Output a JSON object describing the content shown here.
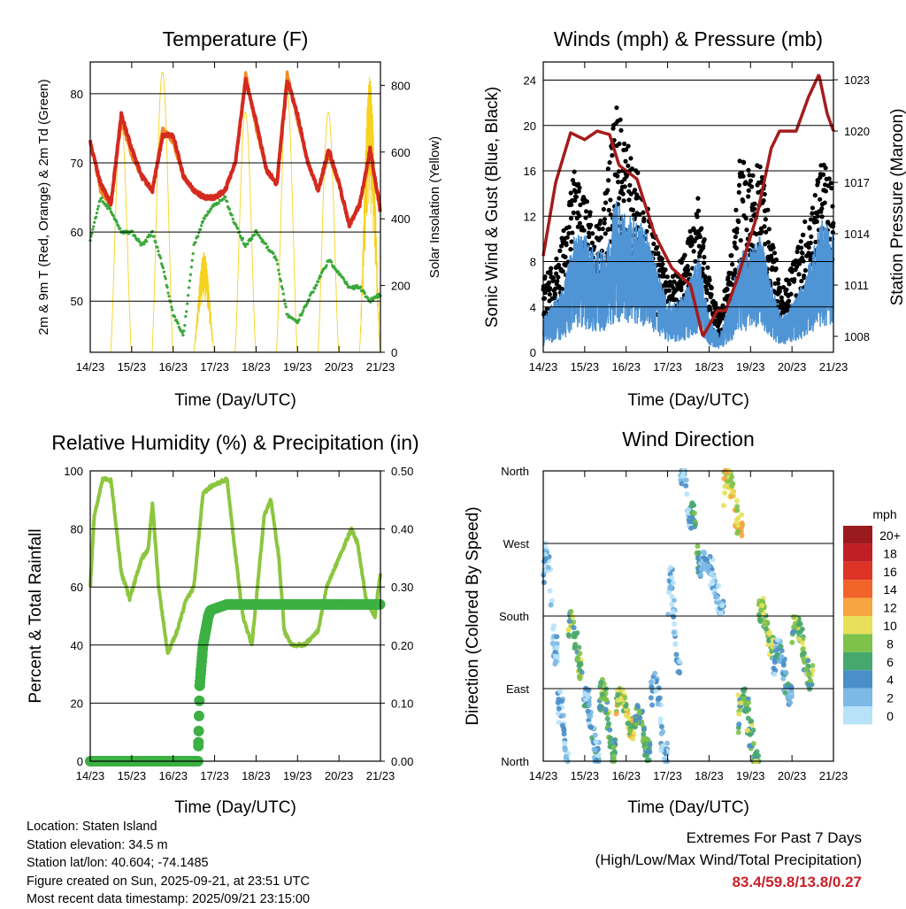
{
  "info": {
    "location": "Location: Staten Island",
    "elevation": "Station elevation: 34.5 m",
    "latlon": "Station lat/lon: 40.604; -74.1485",
    "created": "Figure created on Sun, 2025-09-21, at 23:51 UTC",
    "recent": "Most recent data timestamp: 2025/09/21 23:15:00"
  },
  "extremes": {
    "title": "Extremes For Past 7 Days",
    "subtitle": "(High/Low/Max Wind/Total Precipitation)",
    "values": "83.4/59.8/13.8/0.27"
  },
  "chart_data": [
    {
      "type": "line",
      "title": "Temperature (F)",
      "xlabel": "Time (Day/UTC)",
      "ylabel": "2m & 9m T (Red, Orange) & 2m Td (Green)",
      "y2label": "Solar Insolation (Yellow)",
      "xticks": [
        "14/23",
        "15/23",
        "16/23",
        "17/23",
        "18/23",
        "19/23",
        "20/23",
        "21/23"
      ],
      "ylim": [
        42.6,
        84.6
      ],
      "yticks": [
        50,
        60,
        70,
        80
      ],
      "y2lim": [
        0,
        870
      ],
      "y2ticks": [
        0,
        200,
        400,
        600,
        800
      ],
      "x_days_step": 0.25,
      "series": [
        {
          "name": "2m T",
          "color": "#d42a20",
          "values": [
            73,
            67,
            64,
            77,
            72,
            68,
            66,
            74,
            74,
            68,
            66,
            65,
            65,
            66,
            70,
            82,
            76,
            69,
            67,
            82,
            77,
            70,
            66,
            72,
            67,
            61,
            64,
            72,
            63
          ]
        },
        {
          "name": "9m T",
          "color": "#f28a24",
          "values": [
            73,
            66,
            64,
            76,
            71,
            68,
            66,
            75,
            73,
            68,
            66,
            65,
            65,
            66,
            70,
            83,
            75,
            69,
            67,
            83,
            76,
            70,
            66,
            71,
            67,
            61,
            64,
            71,
            63
          ]
        },
        {
          "name": "2m Td",
          "color": "#3aa83a",
          "values": [
            59,
            65,
            63,
            60,
            60,
            58,
            60,
            55,
            48,
            45,
            58,
            62,
            64,
            65,
            61,
            58,
            60,
            58,
            56,
            48,
            47,
            50,
            53,
            56,
            54,
            52,
            52,
            50,
            51
          ]
        }
      ],
      "solar_daily_peak": {
        "name": "Solar Insolation",
        "color": "#f7d21e",
        "values": [
          700,
          840,
          300,
          720,
          790,
          720,
          830
        ]
      }
    },
    {
      "type": "scatter",
      "title": "Winds (mph) & Pressure (mb)",
      "xlabel": "Time (Day/UTC)",
      "ylabel": "Sonic Wind & Gust (Blue, Black)",
      "y2label": "Station Pressure (Maroon)",
      "xticks": [
        "14/23",
        "15/23",
        "16/23",
        "17/23",
        "18/23",
        "19/23",
        "20/23",
        "21/23"
      ],
      "ylim": [
        0,
        25.6
      ],
      "yticks": [
        0,
        4,
        8,
        12,
        16,
        20,
        24
      ],
      "y2lim": [
        1007.07,
        1024.04
      ],
      "y2ticks": [
        1008,
        1011,
        1014,
        1017,
        1020,
        1023
      ],
      "x_days_step": 0.25,
      "series": [
        {
          "name": "Sonic Wind",
          "color": "#4f94d4",
          "values": [
            2,
            3,
            4,
            7,
            7,
            6,
            6,
            9,
            8,
            8,
            7,
            5,
            3,
            3,
            4,
            6,
            2,
            1,
            3,
            6,
            6,
            7,
            4,
            2,
            3,
            4,
            6,
            8,
            7
          ]
        },
        {
          "name": "Gust",
          "color": "#000000",
          "values": [
            6,
            7,
            10,
            15,
            13,
            10,
            13,
            20,
            17,
            15,
            12,
            9,
            6,
            7,
            9,
            13,
            6,
            3,
            7,
            16,
            15,
            15,
            10,
            5,
            7,
            10,
            12,
            16,
            13
          ]
        }
      ],
      "pressure": {
        "name": "Station Pressure",
        "color": "#a51c1c",
        "days": [
          0,
          0.3,
          0.66,
          1.0,
          1.3,
          1.6,
          1.83,
          2.26,
          2.68,
          3.1,
          3.55,
          3.85,
          4.2,
          4.4,
          4.7,
          5.15,
          5.5,
          5.7,
          6.1,
          6.4,
          6.65,
          6.85,
          7.0
        ],
        "values": [
          1012.7,
          1017,
          1019.9,
          1019.5,
          1020,
          1019.8,
          1018,
          1017.2,
          1014,
          1012,
          1011,
          1008,
          1009.5,
          1009.5,
          1011.5,
          1015,
          1019,
          1020,
          1020,
          1022,
          1023.3,
          1021,
          1020
        ]
      }
    },
    {
      "type": "line",
      "title": "Relative Humidity (%) & Precipitation (in)",
      "xlabel": "Time (Day/UTC)",
      "ylabel": "Percent & Total Rainfall",
      "xticks": [
        "14/23",
        "15/23",
        "16/23",
        "17/23",
        "18/23",
        "19/23",
        "20/23",
        "21/23"
      ],
      "ylim": [
        0,
        100
      ],
      "yticks": [
        0,
        20,
        40,
        60,
        80,
        100
      ],
      "y2lim": [
        0,
        0.5
      ],
      "y2ticks": [
        "0.00",
        "0.10",
        "0.20",
        "0.30",
        "0.40",
        "0.50"
      ],
      "series": [
        {
          "name": "Relative Humidity",
          "color": "#8cc63f",
          "days": [
            0,
            0.1,
            0.3,
            0.5,
            0.75,
            0.95,
            1.25,
            1.4,
            1.5,
            1.65,
            1.87,
            2.1,
            2.3,
            2.5,
            2.72,
            2.94,
            3.3,
            3.47,
            3.68,
            3.9,
            4.0,
            4.2,
            4.36,
            4.55,
            4.68,
            4.85,
            5.17,
            5.5,
            5.7,
            6.0,
            6.3,
            6.45,
            6.66,
            6.87,
            7.0
          ],
          "values": [
            60,
            85,
            97,
            97,
            65,
            56,
            70,
            73,
            89,
            60,
            37,
            45,
            55,
            60,
            92,
            95,
            97,
            75,
            50,
            40,
            55,
            85,
            90,
            70,
            45,
            40,
            40,
            45,
            60,
            70,
            80,
            75,
            55,
            50,
            65
          ]
        },
        {
          "name": "Total Precipitation",
          "color": "#3cb043",
          "days": [
            0,
            2.6,
            2.64,
            2.72,
            2.85,
            2.9,
            3.3,
            7.0
          ],
          "values": [
            0,
            0,
            0.13,
            0.2,
            0.25,
            0.26,
            0.27,
            0.27
          ]
        }
      ]
    },
    {
      "type": "scatter",
      "title": "Wind Direction",
      "xlabel": "Time (Day/UTC)",
      "ylabel": "Direction (Colored By Speed)",
      "xticks": [
        "14/23",
        "15/23",
        "16/23",
        "17/23",
        "18/23",
        "19/23",
        "20/23",
        "21/23"
      ],
      "ylim": [
        0,
        360
      ],
      "yticks": [
        "North",
        "East",
        "South",
        "West",
        "North"
      ],
      "legend": {
        "title": "mph",
        "labels": [
          "20+",
          "18",
          "16",
          "14",
          "12",
          "10",
          "8",
          "6",
          "4",
          "2",
          "0"
        ],
        "colors": [
          "#9b1a1d",
          "#c01f26",
          "#de3427",
          "#f0642a",
          "#f7a541",
          "#e8e05a",
          "#7dc24a",
          "#47a86e",
          "#4a8fc8",
          "#7cb9e6",
          "#b7e2f8"
        ]
      },
      "clusters": [
        {
          "days": [
            0,
            0.35
          ],
          "dir": [
            130,
            260
          ],
          "speed": 2
        },
        {
          "days": [
            0.35,
            0.6
          ],
          "dir": [
            0,
            80
          ],
          "speed": 3
        },
        {
          "days": [
            0.6,
            0.95
          ],
          "dir": [
            110,
            175
          ],
          "speed": 8
        },
        {
          "days": [
            0.95,
            1.35
          ],
          "dir": [
            5,
            80
          ],
          "speed": 4
        },
        {
          "days": [
            1.35,
            1.75
          ],
          "dir": [
            10,
            90
          ],
          "speed": 8
        },
        {
          "days": [
            1.75,
            2.2
          ],
          "dir": [
            40,
            80
          ],
          "speed": 10
        },
        {
          "days": [
            2.2,
            2.6
          ],
          "dir": [
            10,
            60
          ],
          "speed": 7
        },
        {
          "days": [
            2.6,
            3.0
          ],
          "dir": [
            0,
            100
          ],
          "speed": 3
        },
        {
          "days": [
            3.0,
            3.3
          ],
          "dir": [
            110,
            230
          ],
          "speed": 3
        },
        {
          "days": [
            3.3,
            3.55
          ],
          "dir": [
            300,
            360
          ],
          "speed": 3
        },
        {
          "days": [
            3.55,
            3.8
          ],
          "dir": [
            240,
            310
          ],
          "speed": 7
        },
        {
          "days": [
            3.8,
            4.35
          ],
          "dir": [
            190,
            250
          ],
          "speed": 3
        },
        {
          "days": [
            4.35,
            4.8
          ],
          "dir": [
            290,
            355
          ],
          "speed": 11
        },
        {
          "days": [
            4.7,
            5.2
          ],
          "dir": [
            0,
            80
          ],
          "speed": 8
        },
        {
          "days": [
            5.2,
            5.55
          ],
          "dir": [
            140,
            190
          ],
          "speed": 9
        },
        {
          "days": [
            5.55,
            6.0
          ],
          "dir": [
            80,
            140
          ],
          "speed": 4
        },
        {
          "days": [
            6.0,
            6.5
          ],
          "dir": [
            100,
            170
          ],
          "speed": 8
        }
      ]
    }
  ]
}
